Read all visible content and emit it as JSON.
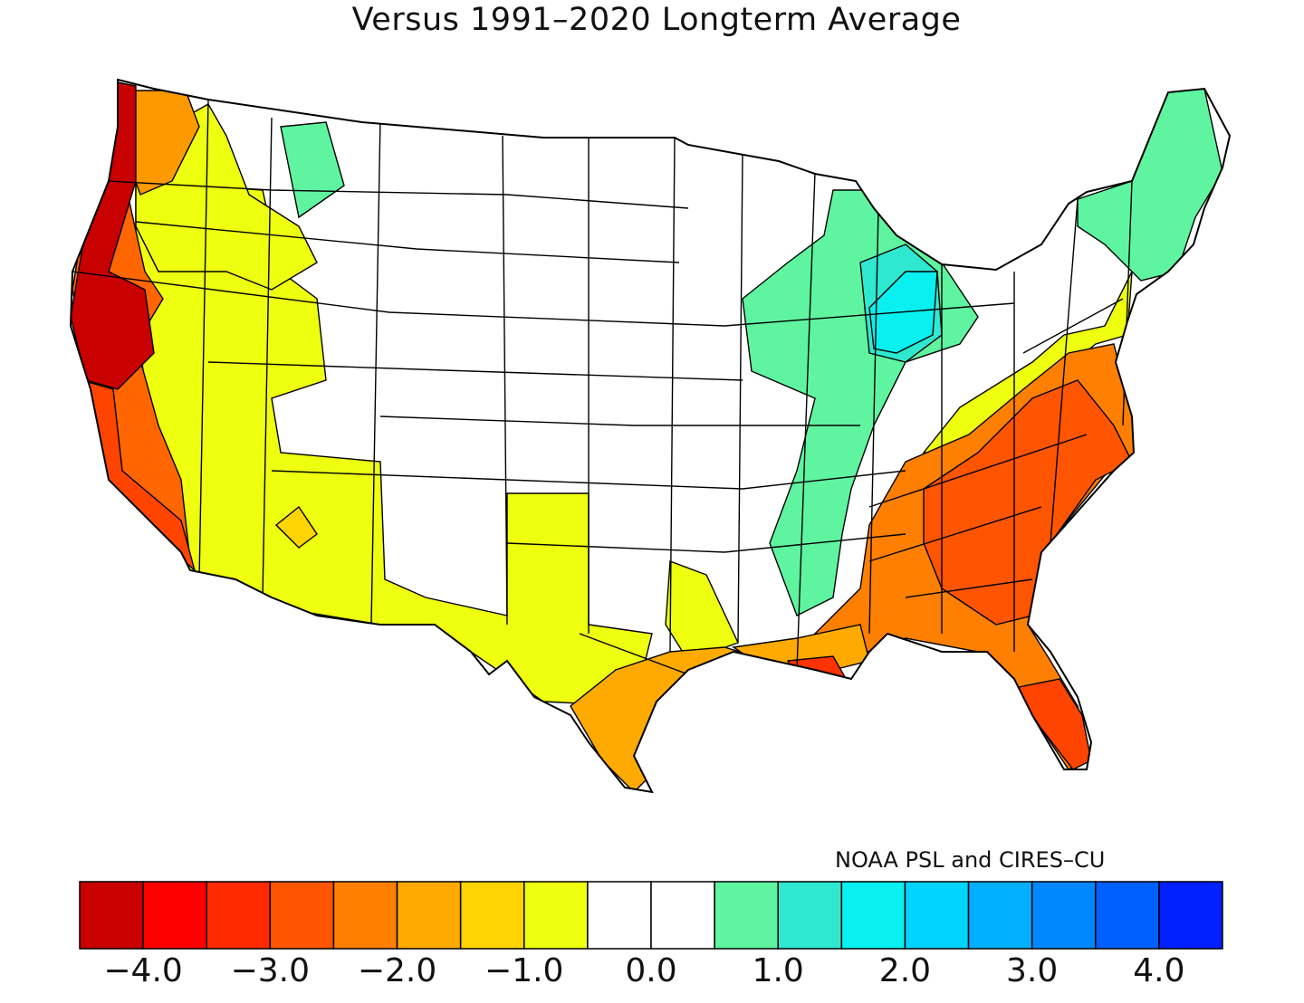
{
  "title": "Versus 1991–2020 Longterm Average",
  "credit": "NOAA PSL and CIRES–CU",
  "colorbar": {
    "colors": [
      "#c80000",
      "#ff0000",
      "#ff2a00",
      "#ff5500",
      "#ff8000",
      "#ffaa00",
      "#ffd400",
      "#eeff10",
      "#ffffff",
      "#ffffff",
      "#5ff5a0",
      "#2ee8d0",
      "#08f0f0",
      "#00d4ff",
      "#00b0ff",
      "#0088ff",
      "#0060ff",
      "#0020ff"
    ],
    "ticks": [
      "−4.0",
      "−3.0",
      "−2.0",
      "−1.0",
      "0.0",
      "1.0",
      "2.0",
      "3.0",
      "4.0"
    ]
  },
  "regions": {
    "west_coast_dark": "#c80000",
    "west_coast_red": "#ff4400",
    "west_coast_orange": "#ff6600",
    "wa_orange": "#ff9900",
    "nw_yellow": "#eeff10",
    "southwest_yellow": "#eeff10",
    "az_gold": "#ffd400",
    "montana_green": "#5ff5a0",
    "midwest_green": "#5ff5a0",
    "michigan_cyan": "#2ee8d0",
    "indiana_cyan": "#08f0f0",
    "northeast_green": "#5ff5a0",
    "southeast_red": "#ff5500",
    "southeast_orange": "#ff8000",
    "gulf_orange": "#ffaa00",
    "louisiana_red": "#ff3300",
    "florida_red": "#ff4400",
    "texas_yellow": "#eeff10",
    "texas_coast_gold": "#ffaa00",
    "appalachia_yellow": "#eeff10"
  }
}
